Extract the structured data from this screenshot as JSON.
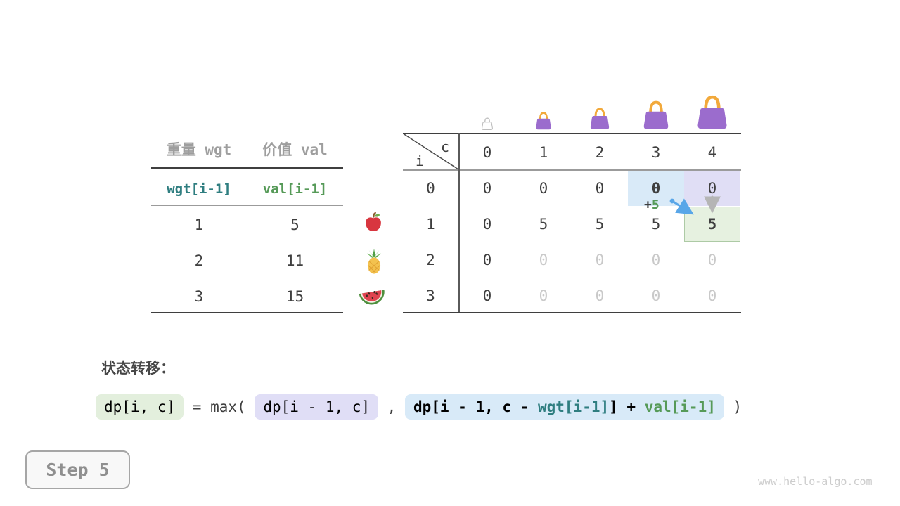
{
  "page": {
    "watermark": "www.hello-algo.com"
  },
  "step_panel": {
    "label": "Step 5"
  },
  "items_table": {
    "headers": [
      "重量 wgt",
      "价值 val"
    ],
    "subheaders": [
      "wgt[i-1]",
      "val[i-1]"
    ],
    "rows": [
      [
        "1",
        "5"
      ],
      [
        "2",
        "11"
      ],
      [
        "3",
        "15"
      ]
    ],
    "row_icons": [
      "apple-icon",
      "pineapple-icon",
      "watermelon-icon"
    ]
  },
  "dp_table": {
    "corner": {
      "col_var": "c",
      "row_var": "i"
    },
    "col_headers": [
      "0",
      "1",
      "2",
      "3",
      "4"
    ],
    "row_headers": [
      "0",
      "1",
      "2",
      "3"
    ],
    "cells": [
      [
        {
          "v": "0"
        },
        {
          "v": "0"
        },
        {
          "v": "0"
        },
        {
          "v": "0",
          "style": "bold hl-blue"
        },
        {
          "v": "0",
          "style": "hl-lav"
        }
      ],
      [
        {
          "v": "0"
        },
        {
          "v": "5"
        },
        {
          "v": "5"
        },
        {
          "v": "5"
        },
        {
          "v": "5",
          "style": "bold hl-green"
        }
      ],
      [
        {
          "v": "0"
        },
        {
          "v": "0",
          "style": "dim"
        },
        {
          "v": "0",
          "style": "dim"
        },
        {
          "v": "0",
          "style": "dim"
        },
        {
          "v": "0",
          "style": "dim"
        }
      ],
      [
        {
          "v": "0"
        },
        {
          "v": "0",
          "style": "dim"
        },
        {
          "v": "0",
          "style": "dim"
        },
        {
          "v": "0",
          "style": "dim"
        },
        {
          "v": "0",
          "style": "dim"
        }
      ]
    ],
    "annotation": {
      "prefix": "+",
      "value": "5"
    },
    "bag_icons": [
      "empty-bag",
      "bag-small",
      "bag-medium",
      "bag-large",
      "bag-xlarge"
    ]
  },
  "formula": {
    "section_label": "状态转移：",
    "lhs_chip": "dp[i, c]",
    "equals_max": " = max( ",
    "option1_chip": "dp[i - 1, c]",
    "comma": " , ",
    "option2_segments": [
      "dp[i - 1, c - ",
      "wgt[i-1]",
      "] + ",
      "val[i-1]"
    ],
    "close_paren": " )"
  },
  "colors": {
    "teal": "#2f7e80",
    "green": "#569a58",
    "arrow_blue": "#58a6e8",
    "arrow_gray": "#b5b5b5",
    "bag_purple": "#9b6ccd",
    "bag_handle": "#f2a93b",
    "hl_blue": "#d9eaf8",
    "hl_lavender": "#e0def5",
    "hl_green": "#e6f1e0"
  }
}
